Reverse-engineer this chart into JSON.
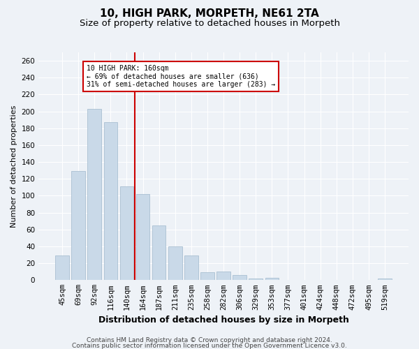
{
  "title": "10, HIGH PARK, MORPETH, NE61 2TA",
  "subtitle": "Size of property relative to detached houses in Morpeth",
  "xlabel": "Distribution of detached houses by size in Morpeth",
  "ylabel": "Number of detached properties",
  "categories": [
    "45sqm",
    "69sqm",
    "92sqm",
    "116sqm",
    "140sqm",
    "164sqm",
    "187sqm",
    "211sqm",
    "235sqm",
    "258sqm",
    "282sqm",
    "306sqm",
    "329sqm",
    "353sqm",
    "377sqm",
    "401sqm",
    "424sqm",
    "448sqm",
    "472sqm",
    "495sqm",
    "519sqm"
  ],
  "values": [
    29,
    129,
    203,
    187,
    111,
    102,
    65,
    40,
    29,
    9,
    10,
    6,
    2,
    3,
    0,
    0,
    0,
    0,
    0,
    0,
    2
  ],
  "bar_color": "#c9d9e8",
  "bar_edgecolor": "#a0b8cc",
  "vline_x": 4.5,
  "vline_color": "#cc0000",
  "annotation_line1": "10 HIGH PARK: 160sqm",
  "annotation_line2": "← 69% of detached houses are smaller (636)",
  "annotation_line3": "31% of semi-detached houses are larger (283) →",
  "annotation_box_edgecolor": "#cc0000",
  "annotation_box_facecolor": "#ffffff",
  "ylim": [
    0,
    270
  ],
  "yticks": [
    0,
    20,
    40,
    60,
    80,
    100,
    120,
    140,
    160,
    180,
    200,
    220,
    240,
    260
  ],
  "background_color": "#eef2f7",
  "grid_color": "#ffffff",
  "footer_line1": "Contains HM Land Registry data © Crown copyright and database right 2024.",
  "footer_line2": "Contains public sector information licensed under the Open Government Licence v3.0.",
  "title_fontsize": 11,
  "subtitle_fontsize": 9.5,
  "xlabel_fontsize": 9,
  "ylabel_fontsize": 8,
  "tick_fontsize": 7.5,
  "footer_fontsize": 6.5
}
